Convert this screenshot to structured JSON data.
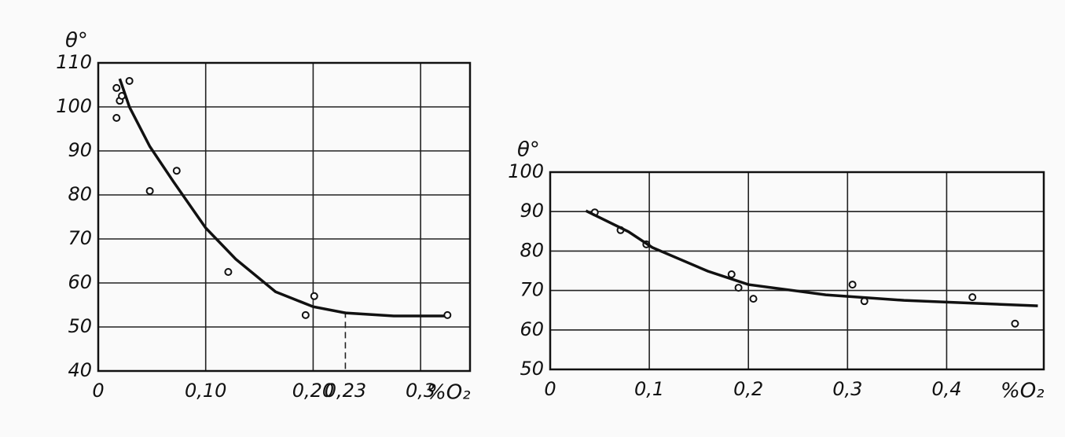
{
  "chart_data": [
    {
      "type": "scatter",
      "y_label": "θ°",
      "x_label": "%O₂",
      "xlim": [
        0,
        0.346
      ],
      "ylim": [
        40,
        110
      ],
      "xticks": [
        0,
        {
          "value": 0.1,
          "label": "0,10"
        },
        {
          "value": 0.2,
          "label": "0,20"
        },
        {
          "value": 0.23,
          "label": "0,23"
        },
        {
          "value": 0.3,
          "label": "0,3"
        }
      ],
      "yticks": [
        40,
        50,
        60,
        70,
        80,
        90,
        100,
        110
      ],
      "grid": true,
      "color": "#111",
      "reference_line": {
        "x": 0.23,
        "y": 53.5,
        "style": "dashed"
      },
      "series": [
        {
          "mode": "markers",
          "x": [
            0.017,
            0.017,
            0.02,
            0.022,
            0.029,
            0.048,
            0.073,
            0.121,
            0.193,
            0.201,
            0.325
          ],
          "values": [
            97.5,
            104.3,
            101.4,
            102.5,
            105.9,
            80.9,
            85.5,
            62.5,
            52.7,
            57,
            52.7
          ]
        },
        {
          "mode": "line",
          "x": [
            0.02,
            0.029,
            0.048,
            0.07,
            0.1,
            0.128,
            0.165,
            0.2,
            0.23,
            0.275,
            0.322
          ],
          "values": [
            106.4,
            100,
            91,
            83,
            72.5,
            65.4,
            58,
            54.6,
            53.2,
            52.5,
            52.5
          ]
        }
      ]
    },
    {
      "type": "scatter",
      "y_label": "θ°",
      "x_label": "%O₂",
      "xlim": [
        0,
        0.498
      ],
      "ylim": [
        50,
        100
      ],
      "xticks": [
        0,
        {
          "value": 0.1,
          "label": "0,1"
        },
        {
          "value": 0.2,
          "label": "0,2"
        },
        {
          "value": 0.3,
          "label": "0,3"
        },
        {
          "value": 0.4,
          "label": "0,4"
        }
      ],
      "yticks": [
        50,
        60,
        70,
        80,
        90,
        100
      ],
      "grid": true,
      "color": "#111",
      "series": [
        {
          "mode": "markers",
          "x": [
            0.045,
            0.071,
            0.097,
            0.183,
            0.19,
            0.205,
            0.305,
            0.317,
            0.426,
            0.469
          ],
          "values": [
            89.8,
            85.3,
            81.7,
            74.1,
            70.7,
            67.9,
            71.5,
            67.3,
            68.3,
            61.6
          ]
        },
        {
          "mode": "line",
          "x": [
            0.036,
            0.079,
            0.103,
            0.159,
            0.2,
            0.278,
            0.357,
            0.492
          ],
          "values": [
            90.2,
            84.9,
            80.9,
            74.9,
            71.5,
            68.9,
            67.5,
            66.1
          ]
        }
      ]
    }
  ]
}
